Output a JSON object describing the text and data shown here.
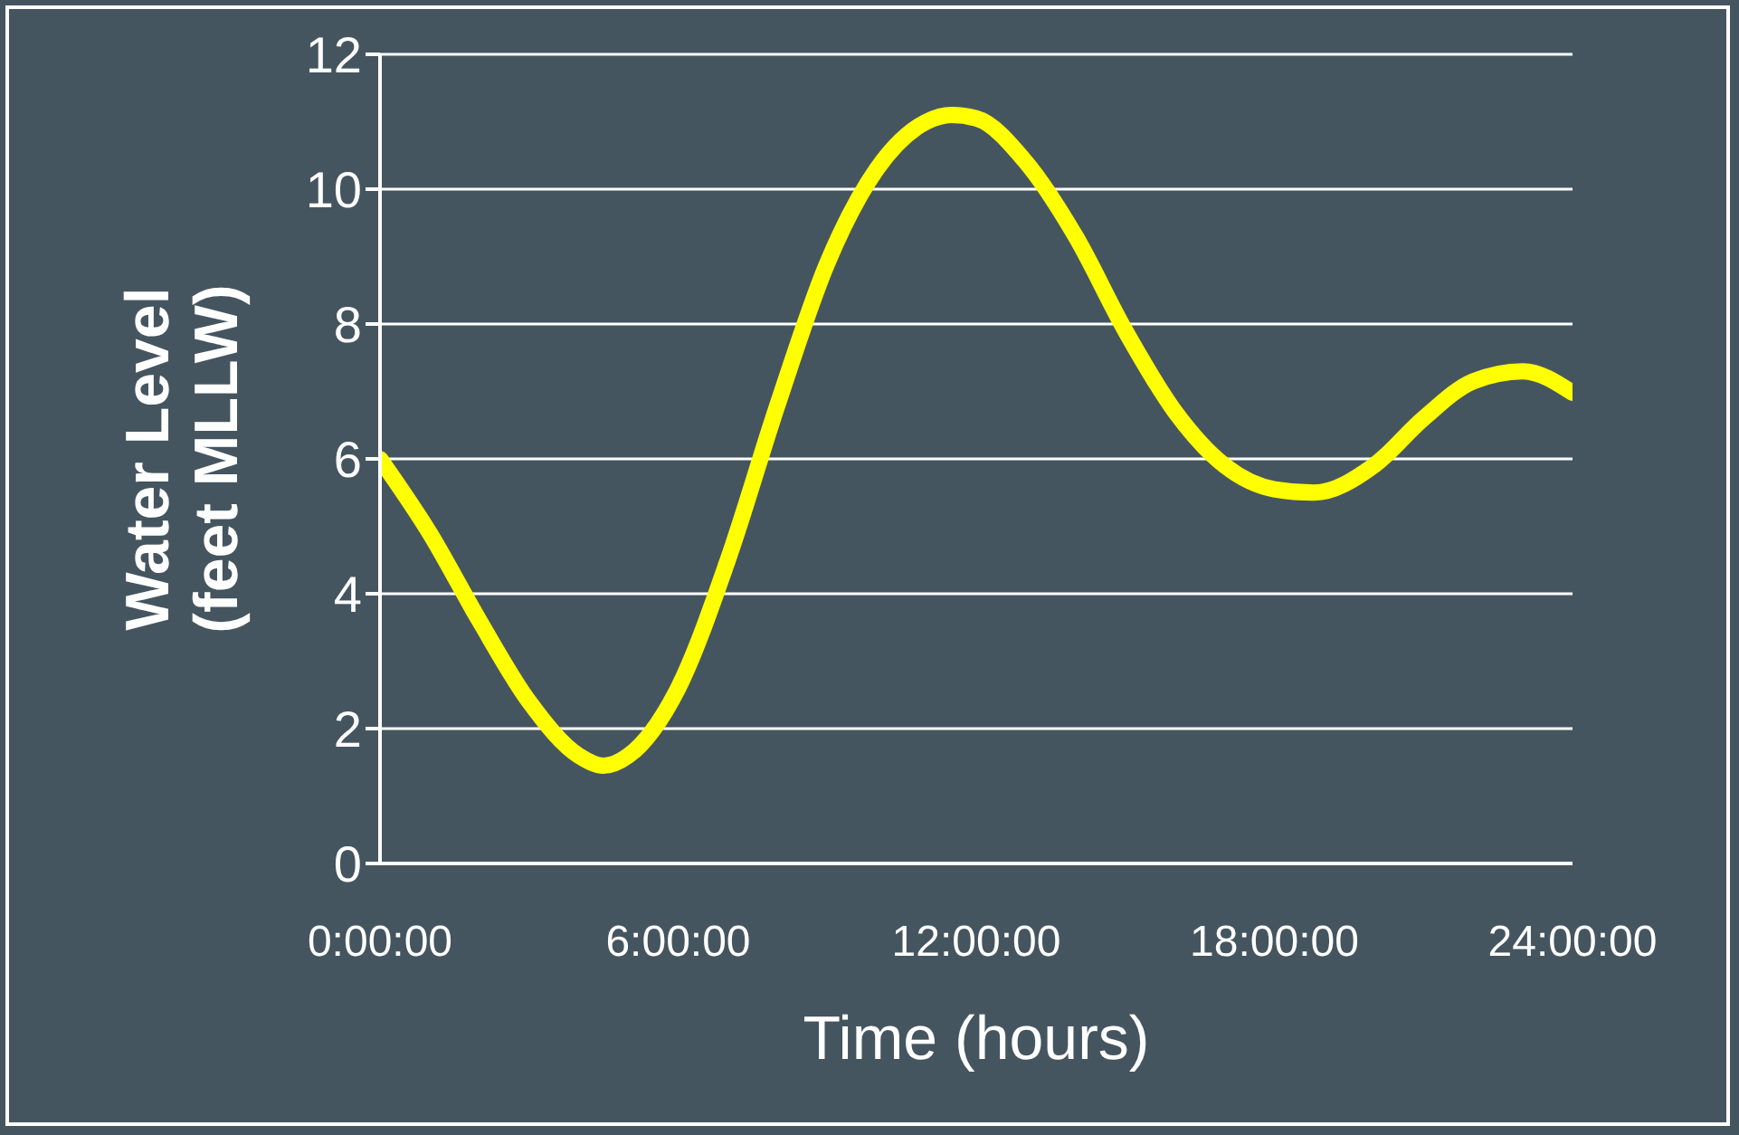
{
  "chart_data": {
    "type": "line",
    "xlabel": "Time (hours)",
    "ylabel": "Water Level\n(feet MLLW)",
    "x": [
      0,
      1,
      2,
      3,
      4,
      4.5,
      5,
      6,
      7,
      8,
      9,
      10,
      11,
      11.5,
      12,
      13,
      14,
      15,
      16,
      17,
      18,
      18.8,
      20,
      21,
      22,
      23,
      24
    ],
    "series": [
      {
        "color": "#ffff00",
        "values": [
          6.0,
          4.9,
          3.6,
          2.4,
          1.6,
          1.45,
          1.6,
          2.6,
          4.5,
          6.8,
          8.9,
          10.3,
          11.0,
          11.1,
          11.05,
          10.4,
          9.3,
          7.9,
          6.7,
          5.9,
          5.55,
          5.5,
          5.9,
          6.6,
          7.15,
          7.3,
          6.98
        ]
      }
    ],
    "xlim": [
      0,
      24
    ],
    "xticks": [
      {
        "value": 0,
        "label": "0:00:00"
      },
      {
        "value": 6,
        "label": "6:00:00"
      },
      {
        "value": 12,
        "label": "12:00:00"
      },
      {
        "value": 18,
        "label": "18:00:00"
      },
      {
        "value": 24,
        "label": "24:00:00"
      }
    ],
    "ylim": [
      0,
      12
    ],
    "yticks": [
      0,
      2,
      4,
      6,
      8,
      10,
      12
    ],
    "grid": "y",
    "marker": "none",
    "line_style": "solid"
  }
}
